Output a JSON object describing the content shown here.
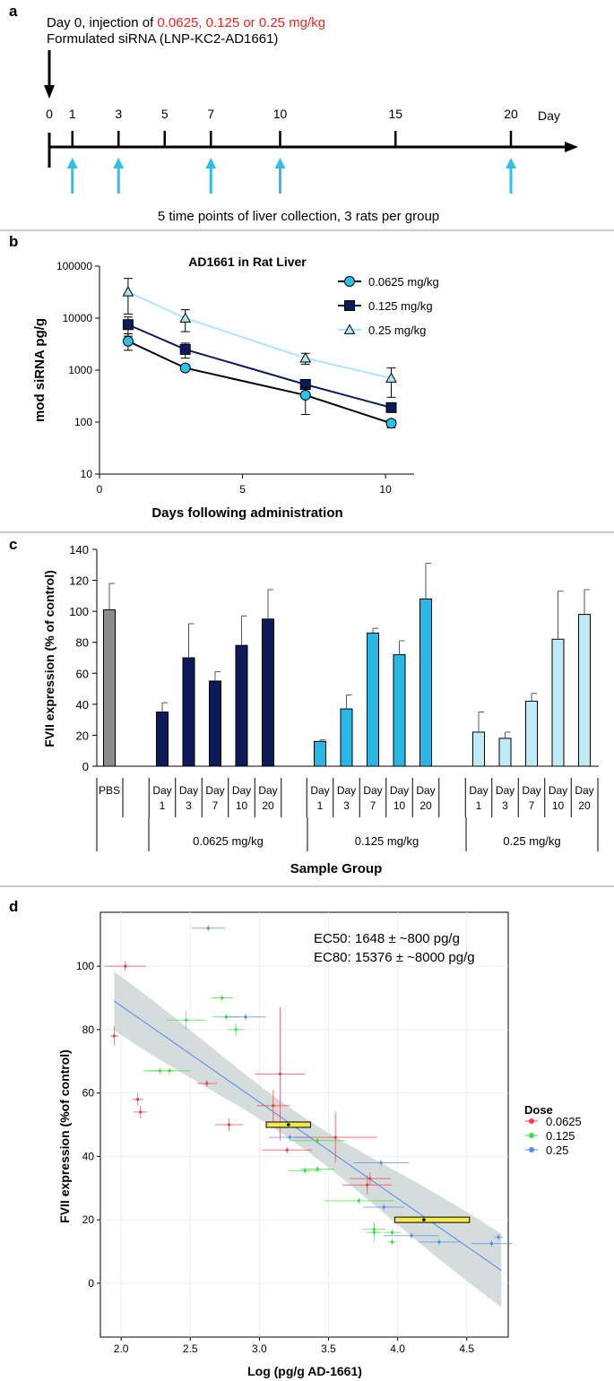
{
  "panel_labels": {
    "a": "a",
    "b": "b",
    "c": "c",
    "d": "d"
  },
  "panel_a": {
    "line1_prefix": "Day 0, injection of ",
    "line1_doses": "0.0625, 0.125 or 0.25 mg/kg",
    "line2": "Formulated siRNA (LNP-KC2-AD1661)",
    "day_label": "Day",
    "ticks": [
      0,
      1,
      3,
      5,
      7,
      10,
      15,
      20
    ],
    "collection_days": [
      1,
      3,
      7,
      10,
      20
    ],
    "caption": "5 time points of liver collection, 3 rats per group",
    "colors": {
      "dose_text": "#e8251f",
      "arrow": "#2fbfe8"
    }
  },
  "chart_data": [
    {
      "id": "b",
      "type": "line",
      "title": "AD1661 in Rat Liver",
      "xlabel": "Days following administration",
      "ylabel": "mod siRNA pg/g",
      "xlim": [
        0,
        11
      ],
      "ylim": [
        10,
        100000
      ],
      "yscale": "log",
      "xticks": [
        0,
        5,
        10
      ],
      "yticks": [
        "10",
        "100",
        "1000",
        "10000",
        "100000"
      ],
      "legend_position": "top-right",
      "series": [
        {
          "name": "0.0625 mg/kg",
          "marker": "circle",
          "color": "#2fbfe8",
          "line": "#000000",
          "x": [
            1,
            3,
            7.2,
            10.2
          ],
          "y": [
            3600,
            1100,
            330,
            95
          ],
          "err_low": [
            2400,
            1000,
            140,
            78
          ],
          "err_high": [
            5000,
            1250,
            470,
            110
          ]
        },
        {
          "name": "0.125 mg/kg",
          "marker": "square",
          "color": "#0d1a5a",
          "line": "#0d1a5a",
          "x": [
            1,
            3,
            7.2,
            10.2
          ],
          "y": [
            7500,
            2500,
            530,
            190
          ],
          "err_low": [
            4500,
            1700,
            480,
            170
          ],
          "err_high": [
            10500,
            3300,
            580,
            215
          ]
        },
        {
          "name": "0.25 mg/kg",
          "marker": "triangle",
          "color": "#aee6f5",
          "line": "#aee6f5",
          "x": [
            1,
            3,
            7.2,
            10.2
          ],
          "y": [
            32000,
            10000,
            1700,
            700
          ],
          "err_low": [
            12000,
            5500,
            1300,
            300
          ],
          "err_high": [
            58000,
            14500,
            2100,
            1100
          ]
        }
      ]
    },
    {
      "id": "c",
      "type": "bar",
      "xlabel": "Sample Group",
      "ylabel": "FVII expression (% of control)",
      "ylim": [
        0,
        140
      ],
      "yticks": [
        0,
        20,
        40,
        60,
        80,
        100,
        120,
        140
      ],
      "bars": [
        {
          "group": "PBS",
          "label_top": "PBS",
          "label_bottom": "",
          "value": 101,
          "err": 17,
          "color": "#8c8c8c"
        },
        {
          "group": "0.0625 mg/kg",
          "label_top": "Day",
          "label_bottom": "1",
          "value": 35,
          "err": 6,
          "color": "#0d1a5a"
        },
        {
          "group": "0.0625 mg/kg",
          "label_top": "Day",
          "label_bottom": "3",
          "value": 70,
          "err": 22,
          "color": "#0d1a5a"
        },
        {
          "group": "0.0625 mg/kg",
          "label_top": "Day",
          "label_bottom": "7",
          "value": 55,
          "err": 6,
          "color": "#0d1a5a"
        },
        {
          "group": "0.0625 mg/kg",
          "label_top": "Day",
          "label_bottom": "10",
          "value": 78,
          "err": 19,
          "color": "#0d1a5a"
        },
        {
          "group": "0.0625 mg/kg",
          "label_top": "Day",
          "label_bottom": "20",
          "value": 95,
          "err": 19,
          "color": "#0d1a5a"
        },
        {
          "group": "0.125 mg/kg",
          "label_top": "Day",
          "label_bottom": "1",
          "value": 16,
          "err": 1,
          "color": "#29b8e5"
        },
        {
          "group": "0.125 mg/kg",
          "label_top": "Day",
          "label_bottom": "3",
          "value": 37,
          "err": 9,
          "color": "#29b8e5"
        },
        {
          "group": "0.125 mg/kg",
          "label_top": "Day",
          "label_bottom": "7",
          "value": 86,
          "err": 3,
          "color": "#29b8e5"
        },
        {
          "group": "0.125 mg/kg",
          "label_top": "Day",
          "label_bottom": "10",
          "value": 72,
          "err": 9,
          "color": "#29b8e5"
        },
        {
          "group": "0.125 mg/kg",
          "label_top": "Day",
          "label_bottom": "20",
          "value": 108,
          "err": 23,
          "color": "#29b8e5"
        },
        {
          "group": "0.25 mg/kg",
          "label_top": "Day",
          "label_bottom": "1",
          "value": 22,
          "err": 13,
          "color": "#bfeaf7"
        },
        {
          "group": "0.25 mg/kg",
          "label_top": "Day",
          "label_bottom": "3",
          "value": 18,
          "err": 4,
          "color": "#bfeaf7"
        },
        {
          "group": "0.25 mg/kg",
          "label_top": "Day",
          "label_bottom": "7",
          "value": 42,
          "err": 5,
          "color": "#bfeaf7"
        },
        {
          "group": "0.25 mg/kg",
          "label_top": "Day",
          "label_bottom": "10",
          "value": 82,
          "err": 31,
          "color": "#bfeaf7"
        },
        {
          "group": "0.25 mg/kg",
          "label_top": "Day",
          "label_bottom": "20",
          "value": 98,
          "err": 16,
          "color": "#bfeaf7"
        }
      ],
      "group_labels": [
        "0.0625 mg/kg",
        "0.125 mg/kg",
        "0.25 mg/kg"
      ]
    },
    {
      "id": "d",
      "type": "scatter",
      "xlabel": "Log (pg/g AD-1661)",
      "ylabel": "FVII expression (%of control)",
      "xlim": [
        1.85,
        4.8
      ],
      "ylim": [
        -17,
        117
      ],
      "xticks": [
        "2.0",
        "2.5",
        "3.0",
        "3.5",
        "4.0",
        "4.5"
      ],
      "yticks": [
        0,
        20,
        40,
        60,
        80,
        100
      ],
      "annotations": [
        "EC50: 1648 ± ~800 pg/g",
        "EC80: 15376 ± ~8000 pg/g"
      ],
      "legend_title": "Dose",
      "legend_position": "right",
      "fit": {
        "x": [
          1.95,
          4.75
        ],
        "y": [
          89,
          4
        ],
        "band_x": [
          1.95,
          4.75
        ],
        "band_half": [
          10,
          12
        ]
      },
      "ec_bars": [
        {
          "x": 3.21,
          "xmin": 3.05,
          "xmax": 3.37,
          "y": 50
        },
        {
          "x": 4.19,
          "xmin": 3.98,
          "xmax": 4.52,
          "y": 20
        }
      ],
      "series": [
        {
          "name": "0.0625",
          "color": "#f03a46",
          "points": [
            {
              "x": 2.03,
              "y": 100,
              "dx": 0.15,
              "dy": 1.5
            },
            {
              "x": 1.95,
              "y": 78,
              "dx": 0.03,
              "dy": 3
            },
            {
              "x": 2.12,
              "y": 58,
              "dx": 0.04,
              "dy": 2
            },
            {
              "x": 2.14,
              "y": 54,
              "dx": 0.05,
              "dy": 2
            },
            {
              "x": 2.62,
              "y": 63,
              "dx": 0.07,
              "dy": 1
            },
            {
              "x": 2.78,
              "y": 50,
              "dx": 0.1,
              "dy": 2
            },
            {
              "x": 3.15,
              "y": 66,
              "dx": 0.18,
              "dy": 21
            },
            {
              "x": 3.1,
              "y": 56,
              "dx": 0.12,
              "dy": 5
            },
            {
              "x": 3.2,
              "y": 42,
              "dx": 0.18,
              "dy": 1
            },
            {
              "x": 3.55,
              "y": 46,
              "dx": 0.3,
              "dy": 8
            },
            {
              "x": 3.78,
              "y": 31,
              "dx": 0.18,
              "dy": 3
            },
            {
              "x": 3.8,
              "y": 33,
              "dx": 0.15,
              "dy": 2
            }
          ]
        },
        {
          "name": "0.125",
          "color": "#3dde3d",
          "points": [
            {
              "x": 2.73,
              "y": 90,
              "dx": 0.08,
              "dy": 1
            },
            {
              "x": 2.76,
              "y": 84,
              "dx": 0.1,
              "dy": 1
            },
            {
              "x": 2.47,
              "y": 83,
              "dx": 0.14,
              "dy": 3
            },
            {
              "x": 2.83,
              "y": 80,
              "dx": 0.06,
              "dy": 2
            },
            {
              "x": 2.28,
              "y": 67,
              "dx": 0.12,
              "dy": 1
            },
            {
              "x": 2.35,
              "y": 67,
              "dx": 0.15,
              "dy": 1
            },
            {
              "x": 3.42,
              "y": 45,
              "dx": 0.2,
              "dy": 1
            },
            {
              "x": 3.33,
              "y": 35.5,
              "dx": 0.12,
              "dy": 1
            },
            {
              "x": 3.42,
              "y": 36,
              "dx": 0.12,
              "dy": 1
            },
            {
              "x": 3.72,
              "y": 26,
              "dx": 0.25,
              "dy": 1
            },
            {
              "x": 3.83,
              "y": 17,
              "dx": 0.08,
              "dy": 2
            },
            {
              "x": 3.83,
              "y": 16,
              "dx": 0.05,
              "dy": 3
            },
            {
              "x": 3.96,
              "y": 16,
              "dx": 0.06,
              "dy": 1
            },
            {
              "x": 3.96,
              "y": 13,
              "dx": 0.03,
              "dy": 1
            }
          ]
        },
        {
          "name": "0.25",
          "color": "#4f8df0",
          "points": [
            {
              "x": 2.63,
              "y": 112,
              "dx": 0.12,
              "dy": 1
            },
            {
              "x": 2.9,
              "y": 84,
              "dx": 0.15,
              "dy": 1
            },
            {
              "x": 3.22,
              "y": 46,
              "dx": 0.15,
              "dy": 1
            },
            {
              "x": 3.88,
              "y": 38,
              "dx": 0.2,
              "dy": 1
            },
            {
              "x": 3.9,
              "y": 24,
              "dx": 0.15,
              "dy": 1
            },
            {
              "x": 4.1,
              "y": 15,
              "dx": 0.2,
              "dy": 1
            },
            {
              "x": 4.3,
              "y": 13,
              "dx": 0.15,
              "dy": 1
            },
            {
              "x": 4.68,
              "y": 12.5,
              "dx": 0.15,
              "dy": 1
            },
            {
              "x": 4.73,
              "y": 14.5,
              "dx": 0.03,
              "dy": 1
            }
          ]
        }
      ]
    }
  ]
}
